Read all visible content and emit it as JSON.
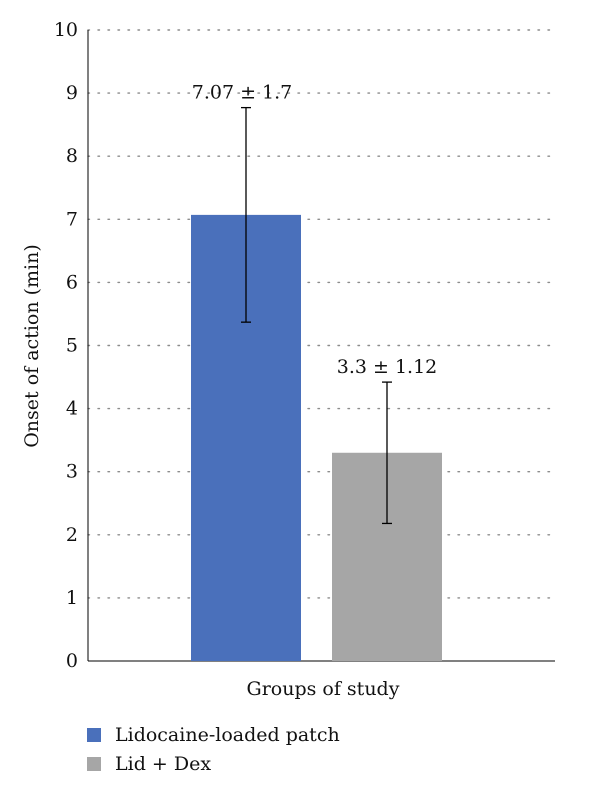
{
  "chart_data": {
    "type": "bar",
    "categories": [
      "Lidocaine-loaded patch",
      "Lid + Dex"
    ],
    "series": [
      {
        "values": [
          7.07,
          3.3
        ],
        "errors": [
          1.7,
          1.12
        ],
        "data_labels": [
          "7.07 ± 1.7",
          "3.3 ± 1.12"
        ]
      }
    ],
    "colors": [
      "#4a70bb",
      "#a6a6a6"
    ],
    "xlabel": "Groups of study",
    "ylabel": "Onset of action (min)",
    "ylim": [
      0,
      10
    ],
    "yticks": [
      0,
      1,
      2,
      3,
      4,
      5,
      6,
      7,
      8,
      9,
      10
    ],
    "grid": "dotted horizontal",
    "legend": {
      "position": "bottom-left",
      "entries": [
        "Lidocaine-loaded patch",
        "Lid + Dex"
      ]
    }
  }
}
